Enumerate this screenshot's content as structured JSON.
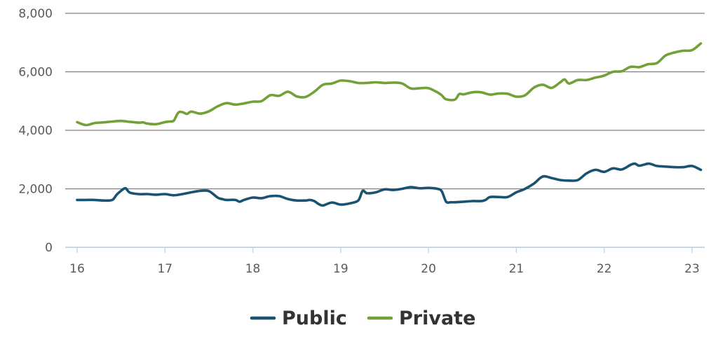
{
  "colors": {
    "public": "#1a5271",
    "private": "#74a038",
    "grid": "#7f7f7f",
    "baseline": "#c9d6e2",
    "tick_text": "#5a5a5a",
    "legend_text": "#333333"
  },
  "chart_data": {
    "type": "line",
    "title": "",
    "xlabel": "",
    "ylabel": "",
    "xlim": [
      16.0,
      23.12
    ],
    "ylim": [
      0,
      8000
    ],
    "y_ticks": [
      0,
      2000,
      4000,
      6000,
      8000
    ],
    "y_tick_labels": [
      "0",
      "2,000",
      "4,000",
      "6,000",
      "8,000"
    ],
    "x_ticks": [
      16,
      17,
      18,
      19,
      20,
      21,
      22,
      23
    ],
    "x_tick_labels": [
      "16",
      "17",
      "18",
      "19",
      "20",
      "21",
      "22",
      "23"
    ],
    "grid": "horizontal",
    "legend_position": "bottom-center",
    "series": [
      {
        "name": "Public",
        "color_key": "public",
        "x": [
          16.0,
          16.1,
          16.2,
          16.3,
          16.4,
          16.45,
          16.5,
          16.55,
          16.6,
          16.7,
          16.8,
          16.9,
          17.0,
          17.1,
          17.2,
          17.3,
          17.4,
          17.5,
          17.6,
          17.65,
          17.7,
          17.8,
          17.85,
          17.9,
          18.0,
          18.1,
          18.2,
          18.3,
          18.4,
          18.5,
          18.6,
          18.65,
          18.7,
          18.75,
          18.8,
          18.9,
          19.0,
          19.1,
          19.2,
          19.25,
          19.3,
          19.4,
          19.5,
          19.6,
          19.7,
          19.8,
          19.9,
          20.0,
          20.1,
          20.15,
          20.2,
          20.25,
          20.3,
          20.4,
          20.5,
          20.6,
          20.65,
          20.7,
          20.8,
          20.9,
          21.0,
          21.1,
          21.2,
          21.3,
          21.4,
          21.5,
          21.6,
          21.7,
          21.8,
          21.9,
          22.0,
          22.1,
          22.2,
          22.3,
          22.35,
          22.4,
          22.5,
          22.55,
          22.6,
          22.7,
          22.8,
          22.9,
          23.0,
          23.1
        ],
        "values": [
          1620,
          1620,
          1620,
          1600,
          1620,
          1800,
          1930,
          2020,
          1870,
          1820,
          1820,
          1800,
          1820,
          1780,
          1820,
          1880,
          1930,
          1920,
          1700,
          1650,
          1620,
          1620,
          1560,
          1620,
          1700,
          1680,
          1750,
          1750,
          1650,
          1600,
          1600,
          1620,
          1580,
          1480,
          1430,
          1530,
          1460,
          1500,
          1600,
          1930,
          1850,
          1880,
          1980,
          1960,
          2000,
          2060,
          2020,
          2030,
          2000,
          1920,
          1560,
          1540,
          1540,
          1560,
          1580,
          1580,
          1620,
          1720,
          1720,
          1720,
          1880,
          2000,
          2180,
          2420,
          2370,
          2300,
          2280,
          2300,
          2530,
          2650,
          2580,
          2700,
          2660,
          2820,
          2860,
          2790,
          2860,
          2830,
          2780,
          2760,
          2740,
          2740,
          2780,
          2650
        ]
      },
      {
        "name": "Private",
        "color_key": "private",
        "x": [
          16.0,
          16.1,
          16.2,
          16.3,
          16.4,
          16.5,
          16.6,
          16.7,
          16.75,
          16.8,
          16.9,
          17.0,
          17.05,
          17.1,
          17.15,
          17.2,
          17.25,
          17.3,
          17.4,
          17.5,
          17.6,
          17.7,
          17.8,
          17.9,
          18.0,
          18.1,
          18.2,
          18.3,
          18.4,
          18.5,
          18.6,
          18.7,
          18.8,
          18.9,
          19.0,
          19.1,
          19.2,
          19.3,
          19.4,
          19.5,
          19.6,
          19.7,
          19.8,
          19.9,
          20.0,
          20.1,
          20.15,
          20.2,
          20.3,
          20.35,
          20.4,
          20.5,
          20.6,
          20.7,
          20.8,
          20.9,
          21.0,
          21.1,
          21.2,
          21.3,
          21.4,
          21.5,
          21.55,
          21.6,
          21.7,
          21.8,
          21.9,
          22.0,
          22.1,
          22.2,
          22.3,
          22.4,
          22.5,
          22.6,
          22.7,
          22.8,
          22.9,
          23.0,
          23.1
        ],
        "values": [
          4280,
          4180,
          4250,
          4270,
          4300,
          4320,
          4290,
          4260,
          4270,
          4230,
          4210,
          4280,
          4300,
          4330,
          4600,
          4620,
          4560,
          4640,
          4570,
          4650,
          4820,
          4930,
          4880,
          4920,
          4980,
          5000,
          5200,
          5180,
          5320,
          5160,
          5140,
          5320,
          5560,
          5600,
          5700,
          5680,
          5620,
          5620,
          5640,
          5620,
          5630,
          5600,
          5430,
          5440,
          5440,
          5300,
          5200,
          5060,
          5050,
          5240,
          5230,
          5300,
          5300,
          5220,
          5260,
          5250,
          5150,
          5200,
          5460,
          5560,
          5450,
          5640,
          5740,
          5600,
          5720,
          5720,
          5800,
          5870,
          6000,
          6020,
          6170,
          6160,
          6260,
          6300,
          6560,
          6660,
          6720,
          6740,
          6970
        ]
      }
    ]
  }
}
